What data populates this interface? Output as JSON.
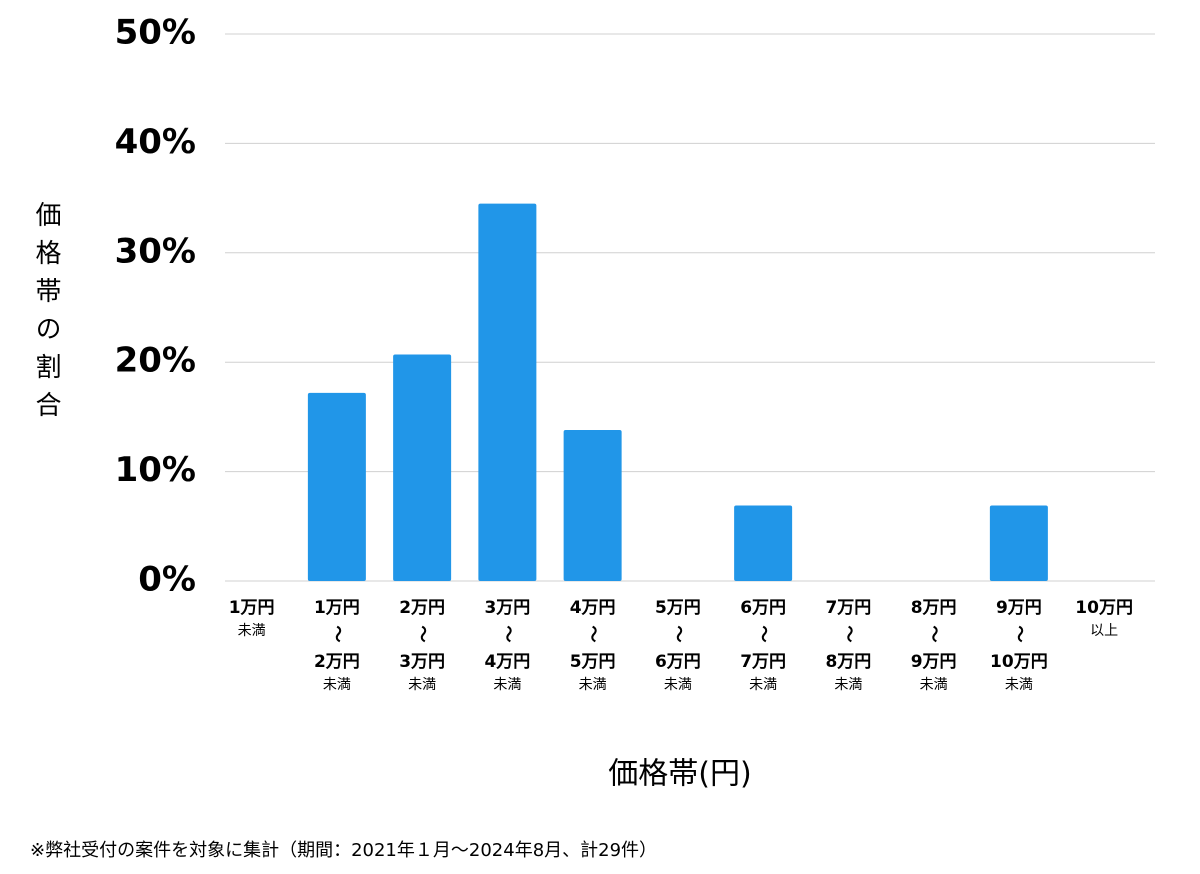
{
  "chart_data": {
    "type": "bar",
    "y_label": "価格帯の割合",
    "x_label": "価格帯(円)",
    "note": "※弊社受付の案件を対象に集計（期間：2021年１月～2024年8月、計29件）",
    "categories": [
      [
        "1万円",
        "未満"
      ],
      [
        "1万円",
        "〜",
        "2万円",
        "未満"
      ],
      [
        "2万円",
        "〜",
        "3万円",
        "未満"
      ],
      [
        "3万円",
        "〜",
        "4万円",
        "未満"
      ],
      [
        "4万円",
        "〜",
        "5万円",
        "未満"
      ],
      [
        "5万円",
        "〜",
        "6万円",
        "未満"
      ],
      [
        "6万円",
        "〜",
        "7万円",
        "未満"
      ],
      [
        "7万円",
        "〜",
        "8万円",
        "未満"
      ],
      [
        "8万円",
        "〜",
        "9万円",
        "未満"
      ],
      [
        "9万円",
        "〜",
        "10万円",
        "未満"
      ],
      [
        "10万円",
        "以上"
      ]
    ],
    "values": [
      0,
      17.2,
      20.7,
      34.5,
      13.8,
      0,
      6.9,
      0,
      0,
      6.9,
      0
    ],
    "color": "#2196e8",
    "ylim": [
      0,
      50
    ],
    "yticks": [
      {
        "value": 0,
        "label": "0%"
      },
      {
        "value": 10,
        "label": "10%"
      },
      {
        "value": 20,
        "label": "20%"
      },
      {
        "value": 30,
        "label": "30%"
      },
      {
        "value": 40,
        "label": "40%"
      },
      {
        "value": 50,
        "label": "50%"
      }
    ],
    "grid": true
  }
}
